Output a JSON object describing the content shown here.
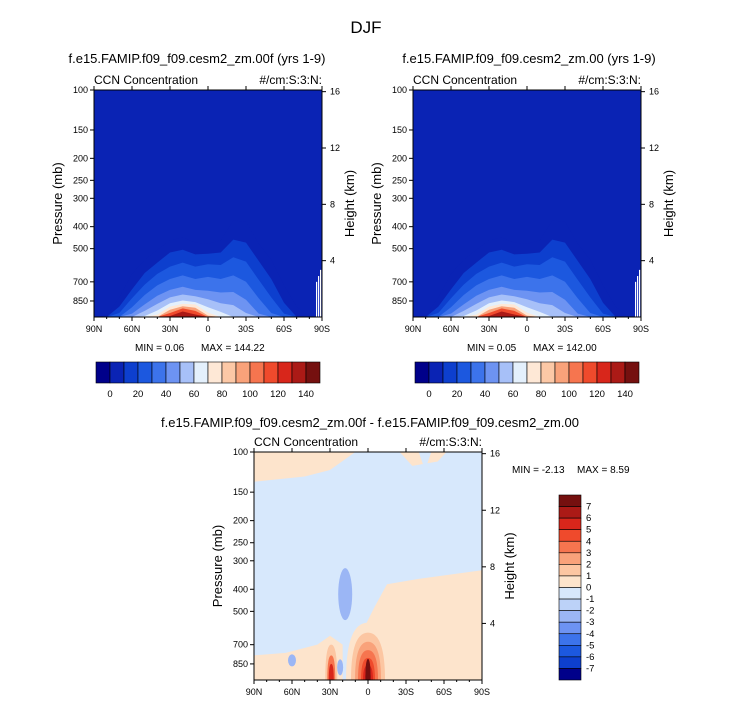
{
  "figure": {
    "title": "DJF"
  },
  "colors": {
    "abs_scale": [
      "#00008a",
      "#0a23b4",
      "#0d3fce",
      "#1c58df",
      "#3c73eb",
      "#6d93f2",
      "#a7c0f8",
      "#e4f0fc",
      "#fee8d6",
      "#fcc8a6",
      "#f9a27a",
      "#f6754f",
      "#ef4a2c",
      "#d8261b",
      "#ab1a16",
      "#75100f"
    ],
    "diff_scale": [
      "#00008a",
      "#0d3fce",
      "#1c58df",
      "#3c73eb",
      "#6d93f2",
      "#9bb6f5",
      "#bcd2f8",
      "#d7e8fc",
      "#fde4cc",
      "#fcc6a2",
      "#f9a27a",
      "#f6754f",
      "#ef4a2c",
      "#d8261b",
      "#ab1a16",
      "#75100f"
    ]
  },
  "chart_data": [
    {
      "id": "top-left",
      "type": "contour",
      "title": "f.e15.FAMIP.f09_f09.cesm2_zm.00f (yrs 1-9)",
      "left_label": "CCN Concentration",
      "right_label": "#/cm:S:3:N:",
      "ylabel": "Pressure (mb)",
      "ylabel_right": "Height (km)",
      "x_ticks": [
        "90N",
        "60N",
        "30N",
        "0",
        "30S",
        "60S",
        "90S"
      ],
      "x_values": [
        90,
        60,
        30,
        0,
        -30,
        -60,
        -90
      ],
      "y_ticks": [
        "100",
        "150",
        "200",
        "250",
        "300",
        "400",
        "500",
        "700",
        "850"
      ],
      "y_values": [
        100,
        150,
        200,
        250,
        300,
        400,
        500,
        700,
        850
      ],
      "y_range": [
        100,
        1000
      ],
      "height_ticks": [
        "16",
        "12",
        "8",
        "4"
      ],
      "height_values": [
        16,
        12,
        8,
        4
      ],
      "min_text": "MIN =   0.06",
      "max_text": "MAX =  144.22",
      "min_value": 0.06,
      "max_value": 144.22,
      "colorbar_labels": [
        "0",
        "20",
        "40",
        "60",
        "80",
        "100",
        "120",
        "140"
      ]
    },
    {
      "id": "top-right",
      "type": "contour",
      "title": "f.e15.FAMIP.f09_f09.cesm2_zm.00 (yrs 1-9)",
      "left_label": "CCN Concentration",
      "right_label": "#/cm:S:3:N:",
      "ylabel": "Pressure (mb)",
      "ylabel_right": "Height (km)",
      "x_ticks": [
        "90N",
        "60N",
        "30N",
        "0",
        "30S",
        "60S",
        "90S"
      ],
      "x_values": [
        90,
        60,
        30,
        0,
        -30,
        -60,
        -90
      ],
      "y_ticks": [
        "100",
        "150",
        "200",
        "250",
        "300",
        "400",
        "500",
        "700",
        "850"
      ],
      "y_values": [
        100,
        150,
        200,
        250,
        300,
        400,
        500,
        700,
        850
      ],
      "y_range": [
        100,
        1000
      ],
      "height_ticks": [
        "16",
        "12",
        "8",
        "4"
      ],
      "height_values": [
        16,
        12,
        8,
        4
      ],
      "min_text": "MIN =   0.05",
      "max_text": "MAX =  142.00",
      "min_value": 0.05,
      "max_value": 142.0,
      "colorbar_labels": [
        "0",
        "20",
        "40",
        "60",
        "80",
        "100",
        "120",
        "140"
      ]
    },
    {
      "id": "bottom",
      "type": "contour",
      "title": "f.e15.FAMIP.f09_f09.cesm2_zm.00f - f.e15.FAMIP.f09_f09.cesm2_zm.00",
      "left_label": "CCN Concentration",
      "right_label": "#/cm:S:3:N:",
      "ylabel": "Pressure (mb)",
      "ylabel_right": "Height (km)",
      "x_ticks": [
        "90N",
        "60N",
        "30N",
        "0",
        "30S",
        "60S",
        "90S"
      ],
      "x_values": [
        90,
        60,
        30,
        0,
        -30,
        -60,
        -90
      ],
      "y_ticks": [
        "100",
        "150",
        "200",
        "250",
        "300",
        "400",
        "500",
        "700",
        "850"
      ],
      "y_values": [
        100,
        150,
        200,
        250,
        300,
        400,
        500,
        700,
        850
      ],
      "y_range": [
        100,
        1000
      ],
      "height_ticks": [
        "16",
        "12",
        "8",
        "4"
      ],
      "height_values": [
        16,
        12,
        8,
        4
      ],
      "min_text": "MIN =  -2.13",
      "max_text": "MAX =   8.59",
      "min_value": -2.13,
      "max_value": 8.59,
      "colorbar_labels": [
        "7",
        "6",
        "5",
        "4",
        "3",
        "2",
        "1",
        "0",
        "-1",
        "-2",
        "-3",
        "-4",
        "-5",
        "-6",
        "-7"
      ]
    }
  ]
}
